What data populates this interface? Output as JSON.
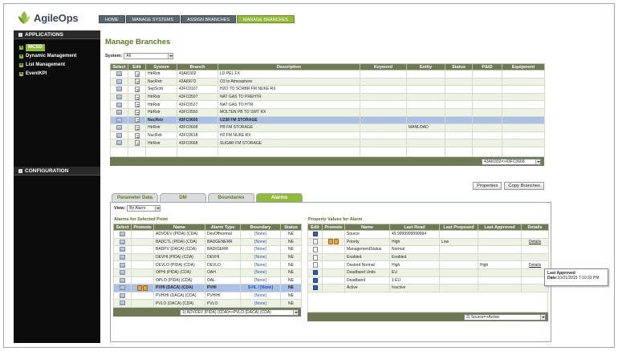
{
  "brand": {
    "name": "AgileOps"
  },
  "topnav": [
    "HOME",
    "MANAGE SYSTEMS",
    "ASSIGN BRANCHES",
    "MANAGE BRANCHES"
  ],
  "sidebar": {
    "applications": "APPLICATIONS",
    "items": [
      "MCSD",
      "Dynamic Management",
      "List Management",
      "EventKPI"
    ],
    "configuration": "CONFIGURATION"
  },
  "page_title": "Manage Branches",
  "system_filter": {
    "label": "System:",
    "value": "All"
  },
  "branches": {
    "headers": [
      "Select",
      "Edit",
      "System",
      "Branch",
      "Description",
      "Keyword",
      "Entity",
      "Status",
      "P&ID",
      "Equipment"
    ],
    "rows": [
      {
        "system": "HtrRxtr",
        "branch": "43AI0302",
        "description": "LD PEL FX",
        "entity": ""
      },
      {
        "system": "NucRxtr",
        "branch": "43AI0672",
        "description": "O3 to Atmosphere",
        "entity": ""
      },
      {
        "system": "SepScrb",
        "branch": "43FC0107",
        "description": "H2O TO SCRBR FM NUKE RX",
        "entity": ""
      },
      {
        "system": "HtrRxtr",
        "branch": "43FC0507",
        "description": "NAT GAS TO PREHTR",
        "entity": ""
      },
      {
        "system": "HtrRxtr",
        "branch": "43FC0527",
        "description": "NAT GAS TO HTR",
        "entity": ""
      },
      {
        "system": "HtrRxtr",
        "branch": "43FC0550",
        "description": "MOLTEN PB TO SWT RX",
        "entity": ""
      },
      {
        "system": "NucRxtr",
        "branch": "43FC0605",
        "description": "U238 FM STORAGE",
        "entity": ""
      },
      {
        "system": "HtrRxtr",
        "branch": "43FC0608",
        "description": "PB FM STORAGE",
        "entity": "MANLOAD"
      },
      {
        "system": "NucRxtr",
        "branch": "43FC0618",
        "description": "H2 FM NUKE RX",
        "entity": ""
      },
      {
        "system": "HtrRxtr",
        "branch": "43FC0668",
        "description": "SUGAR FM STORAGE",
        "entity": ""
      }
    ],
    "highlighted_index": 6,
    "range": "43AI0302=>43FC0668"
  },
  "buttons": {
    "properties": "Properties",
    "copy": "Copy Branches"
  },
  "tabs": [
    "Parameter Data",
    "DM",
    "Boundaries",
    "Alarms"
  ],
  "view_filter": {
    "label": "View:",
    "value": "By Alarm"
  },
  "alarms": {
    "title": "Alarms for Selected Point",
    "headers": [
      "Select",
      "Promote",
      "Name",
      "Alarm Type",
      "Boundary",
      "Status"
    ],
    "rows": [
      {
        "name": "ADVDEV (PIDA) (CDA)",
        "type": "DevOffnormal",
        "boundary": "[None]",
        "status": "NE"
      },
      {
        "name": "BADCTL (PIDA) (CDA)",
        "type": "BADGENERR",
        "boundary": "[None]",
        "status": "NE"
      },
      {
        "name": "BADPV (DACA) (CDA)",
        "type": "BADIOERR",
        "boundary": "[None]",
        "status": "NE"
      },
      {
        "name": "DEVHI (PIDA) (CDA)",
        "type": "DEVHI",
        "boundary": "[None]",
        "status": "NE"
      },
      {
        "name": "DEVLO (PIDA) (CDA)",
        "type": "DEVLO",
        "boundary": "[None]",
        "status": "NE"
      },
      {
        "name": "OPHI (PIDA) (CDA)",
        "type": "OAH",
        "boundary": "[None]",
        "status": "NE"
      },
      {
        "name": "OPLO (PIDA) (CDA)",
        "type": "OAL",
        "boundary": "[None]",
        "status": "NE"
      },
      {
        "name": "PVHI (DACA) (CDA)",
        "type": "PVHI",
        "boundary": "$-HL / [None]",
        "status": "NE"
      },
      {
        "name": "PVHIHI (DACA) (CDA)",
        "type": "PVHIHI",
        "boundary": "[None]",
        "status": "NE"
      },
      {
        "name": "PVLO (DACA) (CDA)",
        "type": "PVLO",
        "boundary": "[None]",
        "status": "NE"
      }
    ],
    "highlighted_index": 7,
    "range": "1) ADVDEV (PIDA) (CDA)=>PVLO (DACA) (CDA)"
  },
  "properties": {
    "title": "Property Values for Alarm",
    "headers": [
      "Edit",
      "Promote",
      "Name",
      "Last Read",
      "Last Proposed",
      "Last Approved",
      "Details"
    ],
    "rows": [
      {
        "icon": "info",
        "promote": false,
        "name": "Source",
        "last_read": "49.9999999999994",
        "proposed": "",
        "approved": "",
        "details": ""
      },
      {
        "icon": "edit",
        "promote": true,
        "name": "Priority",
        "last_read": "High",
        "proposed": "Low",
        "approved": "",
        "details": "Details"
      },
      {
        "icon": "edit",
        "promote": false,
        "name": "ManagementStatus",
        "last_read": "Normal",
        "proposed": "",
        "approved": "",
        "details": ""
      },
      {
        "icon": "edit",
        "promote": false,
        "name": "Enabled",
        "last_read": "Enabled",
        "proposed": "",
        "approved": "",
        "details": ""
      },
      {
        "icon": "edit",
        "promote": false,
        "name": "Desired Normal",
        "last_read": "High",
        "proposed": "",
        "approved": "High",
        "details": "Details"
      },
      {
        "icon": "info",
        "promote": false,
        "name": "Deadband Units",
        "last_read": "EU",
        "proposed": "",
        "approved": "",
        "details": ""
      },
      {
        "icon": "info",
        "promote": false,
        "name": "Deadband",
        "last_read": "1 EU",
        "proposed": "",
        "approved": "",
        "details": ""
      },
      {
        "icon": "info",
        "promote": false,
        "name": "Active",
        "last_read": "Inactive",
        "proposed": "",
        "approved": "",
        "details": ""
      }
    ],
    "range": "2) Source=>Active"
  },
  "tooltip": {
    "title": "Last Approved",
    "date_label": "Date:",
    "date": "10/21/2015 7:10:32 PM"
  },
  "colors": {
    "accent": "#8fba3a",
    "header": "#6e7a55",
    "highlight": "#a9c1e6",
    "sidebar": "#0c0c0c"
  }
}
